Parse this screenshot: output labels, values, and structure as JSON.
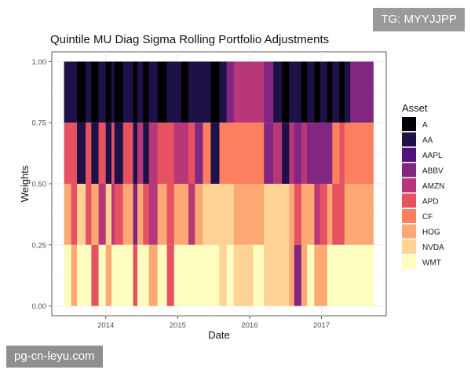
{
  "watermarks": {
    "top": "TG: MYYJJPP",
    "bottom": "pg-cn-leyu.com"
  },
  "colors": {
    "A": "#000004",
    "AA": "#1d1147",
    "AAPL": "#51127c",
    "ABBV": "#822681",
    "AMZN": "#b73779",
    "APD": "#e75263",
    "CF": "#fc7f5f",
    "HOG": "#fea973",
    "NVDA": "#fed395",
    "WMT": "#fcfdbf"
  },
  "chart_data": {
    "type": "area",
    "title": "Quintile MU Diag Sigma Rolling Portfolio Adjustments",
    "xlabel": "Date",
    "ylabel": "Weights",
    "xlim": [
      2013.25,
      2017.9
    ],
    "ylim": [
      -0.04,
      1.04
    ],
    "x_ticks": [
      2014,
      2015,
      2016,
      2017
    ],
    "x_tick_labels": [
      "2014",
      "2015",
      "2016",
      "2017"
    ],
    "y_ticks": [
      0,
      0.25,
      0.5,
      0.75,
      1.0
    ],
    "y_tick_labels": [
      "0.00",
      "0.25",
      "0.50",
      "0.75",
      "1.00"
    ],
    "grid": true,
    "legend": {
      "title": "Asset",
      "placement": "right",
      "entries": [
        "A",
        "AA",
        "AAPL",
        "ABBV",
        "AMZN",
        "APD",
        "CF",
        "HOG",
        "NVDA",
        "WMT"
      ]
    },
    "levels": [
      "0.75-1.00",
      "0.50-0.75",
      "0.25-0.50",
      "0.00-0.25"
    ],
    "x": [
      2013.42,
      2013.52,
      2013.6,
      2013.72,
      2013.8,
      2013.9,
      2014.0,
      2014.08,
      2014.12,
      2014.24,
      2014.38,
      2014.44,
      2014.52,
      2014.6,
      2014.72,
      2014.85,
      2014.95,
      2015.05,
      2015.15,
      2015.24,
      2015.35,
      2015.46,
      2015.58,
      2015.68,
      2015.78,
      2015.9,
      2016.05,
      2016.2,
      2016.33,
      2016.45,
      2016.55,
      2016.62,
      2016.72,
      2016.8,
      2016.9,
      2016.98,
      2017.08,
      2017.15,
      2017.25,
      2017.32,
      2017.4,
      2017.5,
      2017.58,
      2017.72
    ],
    "series": [
      {
        "level": "0.75-1.00",
        "assets": [
          "AA",
          "AA",
          "A",
          "AA",
          "A",
          "AA",
          "A",
          "AA",
          "A",
          "AA",
          "A",
          "AA",
          "A",
          "AA",
          "A",
          "AA",
          "AA",
          "A",
          "AA",
          "AA",
          "AA",
          "A",
          "AA",
          "ABBV",
          "AMZN",
          "AMZN",
          "AMZN",
          "ABBV",
          "AA",
          "A",
          "AA",
          "AA",
          "A",
          "AA",
          "A",
          "AA",
          "A",
          "AA",
          "A",
          "AA",
          "ABBV",
          "ABBV",
          "ABBV"
        ]
      },
      {
        "level": "0.50-0.75",
        "assets": [
          "APD",
          "APD",
          "AA",
          "APD",
          "AA",
          "APD",
          "AA",
          "APD",
          "AA",
          "APD",
          "AA",
          "AMZN",
          "AA",
          "AMZN",
          "APD",
          "APD",
          "AMZN",
          "AMZN",
          "APD",
          "ABBV",
          "CF",
          "AA",
          "CF",
          "CF",
          "CF",
          "CF",
          "CF",
          "ABBV",
          "AMZN",
          "AA",
          "AMZN",
          "ABBV",
          "AMZN",
          "ABBV",
          "ABBV",
          "ABBV",
          "ABBV",
          "CF",
          "APD",
          "CF",
          "CF",
          "CF",
          "CF"
        ]
      },
      {
        "level": "0.25-0.50",
        "assets": [
          "HOG",
          "APD",
          "NVDA",
          "APD",
          "HOG",
          "AMZN",
          "NVDA",
          "AMZN",
          "APD",
          "HOG",
          "ABBV",
          "HOG",
          "APD",
          "AMZN",
          "HOG",
          "APD",
          "HOG",
          "HOG",
          "AMZN",
          "HOG",
          "NVDA",
          "NVDA",
          "NVDA",
          "NVDA",
          "HOG",
          "HOG",
          "HOG",
          "NVDA",
          "NVDA",
          "NVDA",
          "HOG",
          "APD",
          "HOG",
          "HOG",
          "AMZN",
          "APD",
          "HOG",
          "APD",
          "APD",
          "HOG",
          "HOG",
          "HOG",
          "HOG"
        ]
      },
      {
        "level": "0.00-0.25",
        "assets": [
          "WMT",
          "HOG",
          "WMT",
          "WMT",
          "APD",
          "WMT",
          "HOG",
          "WMT",
          "WMT",
          "WMT",
          "APD",
          "WMT",
          "WMT",
          "HOG",
          "WMT",
          "APD",
          "WMT",
          "WMT",
          "WMT",
          "WMT",
          "WMT",
          "WMT",
          "NVDA",
          "WMT",
          "NVDA",
          "NVDA",
          "WMT",
          "NVDA",
          "NVDA",
          "NVDA",
          "HOG",
          "ABBV",
          "HOG",
          "WMT",
          "HOG",
          "HOG",
          "WMT",
          "WMT",
          "WMT",
          "WMT",
          "WMT",
          "WMT",
          "WMT"
        ]
      }
    ]
  }
}
